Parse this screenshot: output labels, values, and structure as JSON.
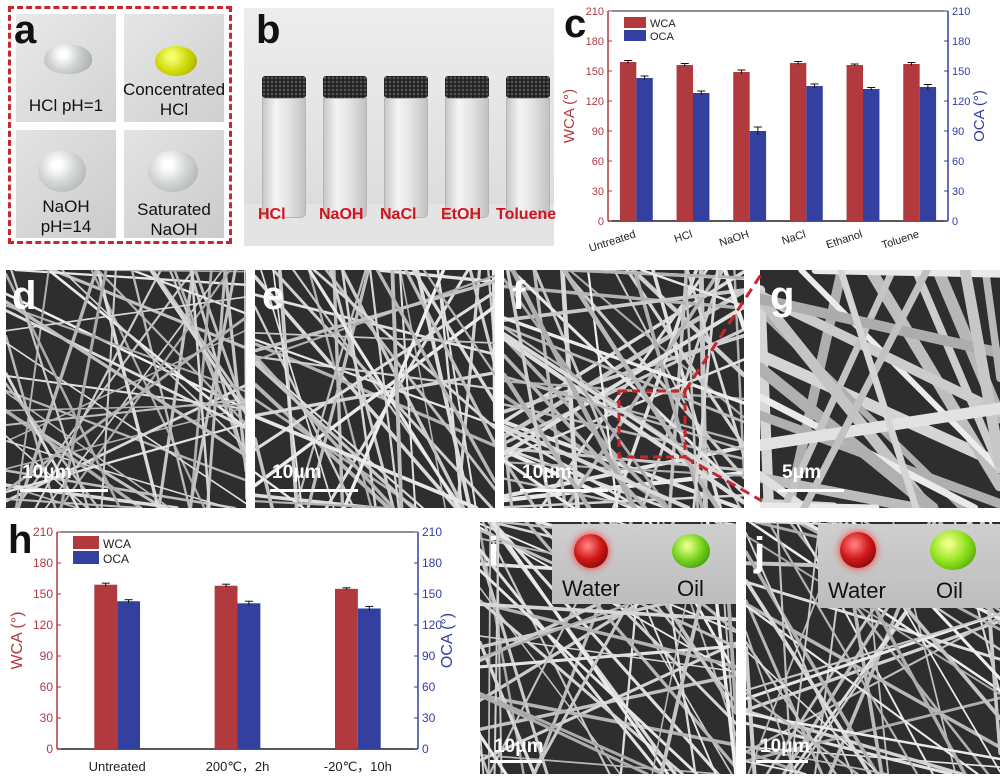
{
  "panels": {
    "a": {
      "label": "a",
      "cells": [
        {
          "text": "HCl  pH=1"
        },
        {
          "text_line1": "Concentrated",
          "text_line2": "HCl"
        },
        {
          "text_line1": "NaOH",
          "text_line2": "pH=14"
        },
        {
          "text_line1": "Saturated",
          "text_line2": "NaOH"
        }
      ]
    },
    "b": {
      "label": "b",
      "bottles": [
        "HCl",
        "NaOH",
        "NaCl",
        "EtOH",
        "Toluene"
      ]
    },
    "c": {
      "label": "c"
    },
    "d": {
      "label": "d",
      "scale": "10μm"
    },
    "e": {
      "label": "e",
      "scale": "10μm"
    },
    "f": {
      "label": "f",
      "scale": "10μm"
    },
    "g": {
      "label": "g",
      "scale": "5μm"
    },
    "h": {
      "label": "h"
    },
    "i": {
      "label": "i",
      "scale": "10μm",
      "water": "Water",
      "oil": "Oil"
    },
    "j": {
      "label": "j",
      "scale": "10μm",
      "water": "Water",
      "oil": "Oil"
    }
  },
  "colors": {
    "wca": "#b13a3f",
    "oca": "#3340a0",
    "dashed_box": "#c9262c",
    "bottle_text": "#d0151f"
  },
  "chart_data": [
    {
      "panel": "c",
      "type": "bar",
      "categories": [
        "Untreated",
        "HCl",
        "NaOH",
        "NaCl",
        "Ethanol",
        "Toluene"
      ],
      "series": [
        {
          "name": "WCA",
          "values": [
            159,
            156,
            149,
            158,
            156,
            157
          ],
          "errors": [
            1.5,
            1.5,
            2,
            1.5,
            1,
            1.5
          ]
        },
        {
          "name": "OCA",
          "values": [
            143,
            128,
            90,
            135,
            132,
            134
          ],
          "errors": [
            2,
            2,
            4,
            2,
            1.5,
            2.5
          ]
        }
      ],
      "ylabel": "WCA (°)",
      "ylabel_right": "OCA (°)",
      "ylim": [
        0,
        210
      ],
      "yticks": [
        0,
        30,
        60,
        90,
        120,
        150,
        180,
        210
      ],
      "legend": "top-left"
    },
    {
      "panel": "h",
      "type": "bar",
      "categories": [
        "Untreated",
        "200℃，2h",
        "-20℃，10h"
      ],
      "series": [
        {
          "name": "WCA",
          "values": [
            159,
            158,
            155
          ],
          "errors": [
            1.5,
            1.5,
            1
          ]
        },
        {
          "name": "OCA",
          "values": [
            143,
            141,
            136
          ],
          "errors": [
            1.5,
            2,
            2
          ]
        }
      ],
      "ylabel": "WCA (°)",
      "ylabel_right": "OCA (°)",
      "ylim": [
        0,
        210
      ],
      "yticks": [
        0,
        30,
        60,
        90,
        120,
        150,
        180,
        210
      ],
      "legend": "top-left"
    }
  ]
}
